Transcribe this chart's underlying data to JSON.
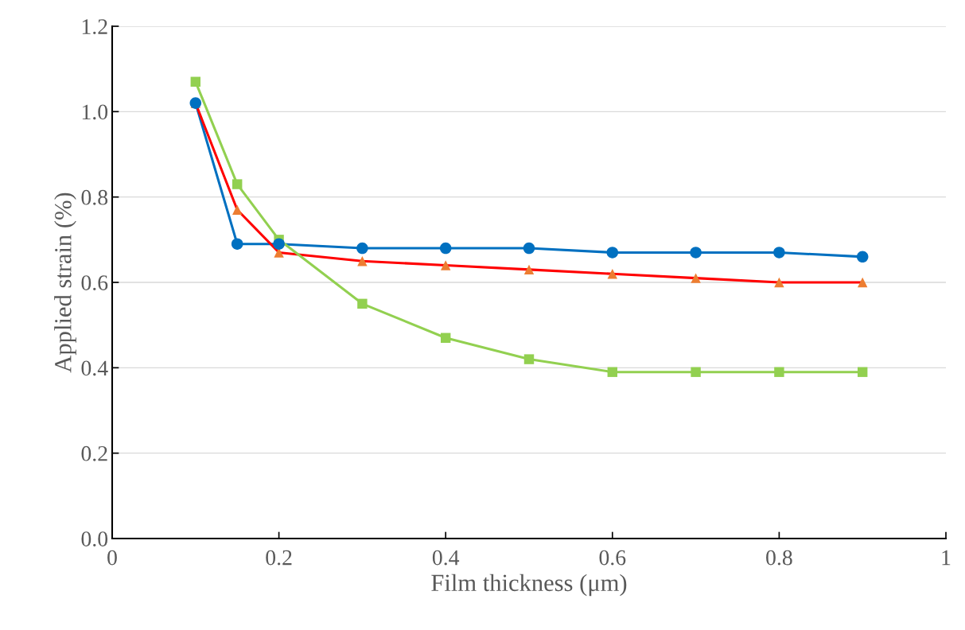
{
  "chart_data": {
    "type": "line",
    "xlabel": "Film thickness (μm)",
    "ylabel": "Applied strain (%)",
    "x": [
      0.1,
      0.15,
      0.2,
      0.3,
      0.4,
      0.5,
      0.6,
      0.7,
      0.8,
      0.9
    ],
    "series": [
      {
        "color": "#0070c0",
        "marker": "circle",
        "values": [
          1.02,
          0.69,
          0.69,
          0.68,
          0.68,
          0.68,
          0.67,
          0.67,
          0.67,
          0.66
        ]
      },
      {
        "color": "#ff0000",
        "marker": "triangle",
        "colors": [
          "#ed7d31",
          "#ed7d31",
          "#ed7d31",
          "#ed7d31",
          "#ed7d31",
          "#ed7d31",
          "#ed7d31",
          "#ed7d31",
          "#ed7d31",
          "#ed7d31"
        ],
        "values": [
          1.02,
          0.77,
          0.67,
          0.65,
          0.64,
          0.63,
          0.62,
          0.61,
          0.6,
          0.6
        ]
      },
      {
        "color": "#92d050",
        "marker": "square",
        "values": [
          1.07,
          0.83,
          0.7,
          0.55,
          0.47,
          0.42,
          0.39,
          0.39,
          0.39,
          0.39
        ]
      }
    ],
    "xlim": [
      0,
      1
    ],
    "xticks": [
      0,
      0.2,
      0.4,
      0.6,
      0.8,
      1
    ],
    "ylim": [
      0,
      1.2
    ],
    "yticks": [
      {
        "value": 0,
        "label": "0.0"
      },
      {
        "value": 0.2,
        "label": "0.2"
      },
      {
        "value": 0.4,
        "label": "0.4"
      },
      {
        "value": 0.6,
        "label": "0.6"
      },
      {
        "value": 0.8,
        "label": "0.8"
      },
      {
        "value": 1.0,
        "label": "1.0"
      },
      {
        "value": 1.2,
        "label": "1.2"
      }
    ],
    "grid": "y",
    "legend": false
  }
}
